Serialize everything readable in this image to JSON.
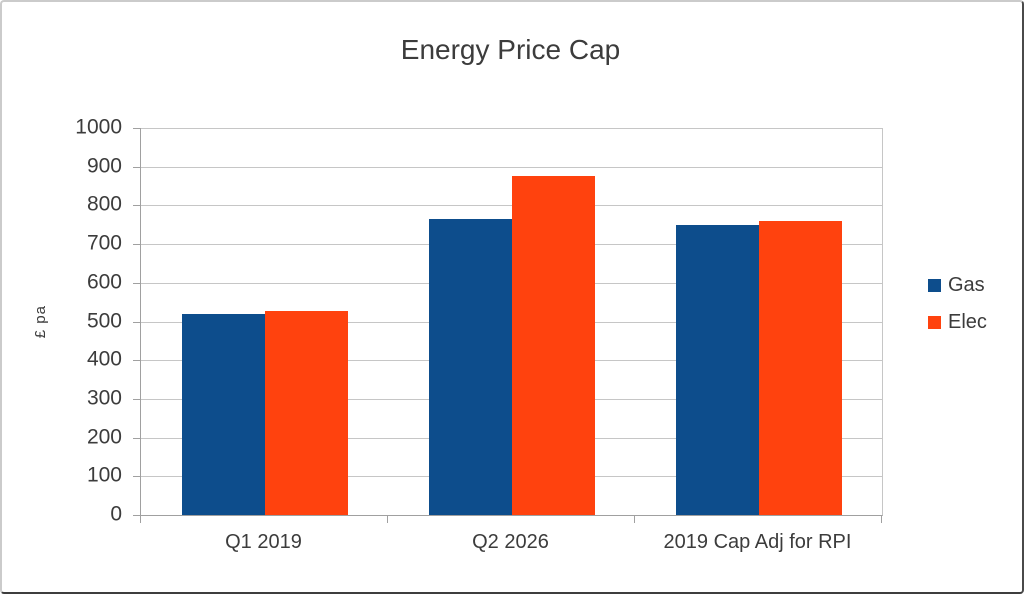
{
  "chart_data": {
    "type": "bar",
    "title": "Energy Price Cap",
    "xlabel": "",
    "ylabel": "£ pa",
    "categories": [
      "Q1 2019",
      "Q2 2026",
      "2019 Cap Adj for RPI"
    ],
    "series": [
      {
        "name": "Gas",
        "color": "#0d4d8c",
        "values": [
          520,
          765,
          750
        ]
      },
      {
        "name": "Elec",
        "color": "#ff420e",
        "values": [
          527,
          875,
          760
        ]
      }
    ],
    "ylim": [
      0,
      1000
    ],
    "yticks": [
      1000,
      900,
      800,
      700,
      600,
      500,
      400,
      300,
      200,
      100,
      0
    ],
    "grid": "horizontal",
    "legend_position": "right"
  },
  "colors": {
    "gridline": "#c6c6c6",
    "axis": "#a0a0a0",
    "text": "#3c3c3c",
    "background": "#ffffff",
    "frame_border_light": "#cbcbcb",
    "frame_border_dark": "#4a4a4a"
  }
}
